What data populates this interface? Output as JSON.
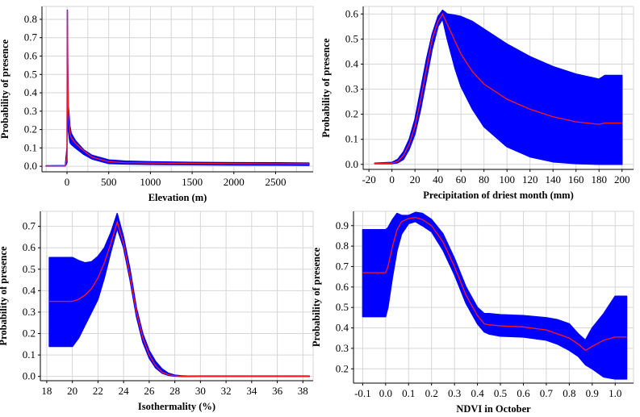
{
  "colors": {
    "band": "#0000ff",
    "mean": "#ff1a1a",
    "grid": "#d6d6d6",
    "axis": "#000000"
  },
  "chart_data": [
    {
      "type": "area",
      "xlabel": "Elevation (m)",
      "ylabel": "Probability of presence",
      "xlim": [
        -300,
        2950
      ],
      "ylim": [
        -0.03,
        0.87
      ],
      "xticks": [
        0,
        500,
        1000,
        1500,
        2000,
        2500
      ],
      "yticks": [
        0.0,
        0.1,
        0.2,
        0.3,
        0.4,
        0.5,
        0.6,
        0.7,
        0.8
      ],
      "xgrid": [
        -250,
        0,
        250,
        500,
        750,
        1000,
        1250,
        1500,
        1750,
        2000,
        2250,
        2500,
        2750
      ],
      "ygrid": [
        0.0,
        0.1,
        0.2,
        0.3,
        0.4,
        0.5,
        0.6,
        0.7,
        0.8
      ],
      "grid": true,
      "x": [
        -250,
        -20,
        0,
        5,
        10,
        15,
        25,
        35,
        50,
        100,
        200,
        300,
        500,
        700,
        1000,
        1500,
        2000,
        2500,
        2900
      ],
      "upper": [
        0.003,
        0.004,
        0.1,
        0.85,
        0.55,
        0.33,
        0.28,
        0.22,
        0.18,
        0.14,
        0.09,
        0.06,
        0.035,
        0.028,
        0.025,
        0.022,
        0.02,
        0.019,
        0.018
      ],
      "mean": [
        0.002,
        0.003,
        0.05,
        0.85,
        0.5,
        0.3,
        0.24,
        0.18,
        0.155,
        0.125,
        0.085,
        0.05,
        0.025,
        0.02,
        0.018,
        0.016,
        0.015,
        0.014,
        0.013
      ],
      "lower": [
        0.001,
        0.002,
        0.02,
        0.8,
        0.4,
        0.2,
        0.16,
        0.13,
        0.12,
        0.1,
        0.065,
        0.04,
        0.015,
        0.012,
        0.01,
        0.008,
        0.007,
        0.006,
        0.005
      ]
    },
    {
      "type": "area",
      "xlabel": "Precipitation of driest month (mm)",
      "ylabel": "Probability of presence",
      "xlim": [
        -25,
        210
      ],
      "ylim": [
        -0.02,
        0.63
      ],
      "xticks": [
        -20,
        0,
        20,
        40,
        60,
        80,
        100,
        120,
        140,
        160,
        180,
        200
      ],
      "yticks": [
        0.0,
        0.1,
        0.2,
        0.3,
        0.4,
        0.5,
        0.6
      ],
      "xgrid": [
        -20,
        0,
        20,
        40,
        60,
        80,
        100,
        120,
        140,
        160,
        180,
        200
      ],
      "ygrid": [
        0.0,
        0.1,
        0.2,
        0.3,
        0.4,
        0.5,
        0.6
      ],
      "grid": true,
      "x": [
        -15,
        0,
        5,
        10,
        15,
        20,
        25,
        30,
        35,
        40,
        44,
        48,
        55,
        60,
        70,
        80,
        100,
        120,
        140,
        160,
        180,
        185,
        200
      ],
      "upper": [
        0.005,
        0.008,
        0.02,
        0.05,
        0.1,
        0.18,
        0.3,
        0.42,
        0.52,
        0.59,
        0.615,
        0.6,
        0.595,
        0.59,
        0.57,
        0.54,
        0.48,
        0.43,
        0.39,
        0.36,
        0.34,
        0.355,
        0.355
      ],
      "mean": [
        0.004,
        0.005,
        0.012,
        0.035,
        0.08,
        0.15,
        0.26,
        0.38,
        0.5,
        0.57,
        0.6,
        0.56,
        0.49,
        0.44,
        0.37,
        0.32,
        0.26,
        0.22,
        0.19,
        0.17,
        0.16,
        0.165,
        0.165
      ],
      "lower": [
        0.003,
        0.003,
        0.006,
        0.02,
        0.06,
        0.12,
        0.22,
        0.34,
        0.46,
        0.55,
        0.58,
        0.5,
        0.38,
        0.31,
        0.22,
        0.15,
        0.07,
        0.03,
        0.01,
        0.003,
        0.0,
        0.0,
        0.0
      ]
    },
    {
      "type": "area",
      "xlabel": "Isothermality (%)",
      "ylabel": "Probability of presence",
      "xlim": [
        17.5,
        38.8
      ],
      "ylim": [
        -0.02,
        0.77
      ],
      "xticks": [
        18,
        20,
        22,
        24,
        26,
        28,
        30,
        32,
        34,
        36,
        38
      ],
      "yticks": [
        0.0,
        0.1,
        0.2,
        0.3,
        0.4,
        0.5,
        0.6,
        0.7
      ],
      "xgrid": [
        18,
        20,
        22,
        24,
        26,
        28,
        30,
        32,
        34,
        36,
        38
      ],
      "ygrid": [
        0.0,
        0.1,
        0.2,
        0.3,
        0.4,
        0.5,
        0.6,
        0.7
      ],
      "grid": true,
      "x": [
        18.2,
        20.0,
        20.5,
        21.0,
        21.5,
        22.0,
        22.5,
        23.0,
        23.5,
        24.0,
        24.5,
        25.0,
        25.5,
        26.0,
        26.5,
        27.0,
        27.5,
        28.0,
        28.5,
        29.0,
        30.0,
        32.0,
        35.0,
        38.5
      ],
      "upper": [
        0.555,
        0.555,
        0.54,
        0.53,
        0.535,
        0.56,
        0.6,
        0.67,
        0.76,
        0.65,
        0.5,
        0.32,
        0.2,
        0.12,
        0.07,
        0.035,
        0.015,
        0.006,
        0.003,
        0.002,
        0.002,
        0.002,
        0.002,
        0.002
      ],
      "mean": [
        0.35,
        0.35,
        0.36,
        0.38,
        0.41,
        0.46,
        0.53,
        0.62,
        0.72,
        0.62,
        0.47,
        0.3,
        0.18,
        0.1,
        0.05,
        0.02,
        0.008,
        0.003,
        0.001,
        0.001,
        0.0,
        0.0,
        0.0,
        0.0
      ],
      "lower": [
        0.14,
        0.14,
        0.18,
        0.24,
        0.3,
        0.36,
        0.46,
        0.58,
        0.69,
        0.6,
        0.45,
        0.28,
        0.16,
        0.085,
        0.04,
        0.015,
        0.005,
        0.001,
        0.0,
        0.0,
        0.0,
        0.0,
        0.0,
        0.0
      ]
    },
    {
      "type": "area",
      "xlabel": "NDVI in October",
      "ylabel": "Probability of presence",
      "xlim": [
        -0.14,
        1.08
      ],
      "ylim": [
        0.13,
        0.97
      ],
      "xticks": [
        -0.1,
        0.0,
        0.1,
        0.2,
        0.3,
        0.4,
        0.5,
        0.6,
        0.7,
        0.8,
        0.9,
        1.0
      ],
      "xtick_labels": [
        "-0.1",
        "0.0",
        "0.1",
        "0.2",
        "0.3",
        "0.4",
        "0.5",
        "0.6",
        "0.7",
        "0.8",
        "0.9",
        "1.0"
      ],
      "yticks": [
        0.2,
        0.3,
        0.4,
        0.5,
        0.6,
        0.7,
        0.8,
        0.9
      ],
      "xgrid": [
        -0.1,
        0.0,
        0.1,
        0.2,
        0.3,
        0.4,
        0.5,
        0.6,
        0.7,
        0.8,
        0.9,
        1.0
      ],
      "ygrid": [
        0.2,
        0.3,
        0.4,
        0.5,
        0.6,
        0.7,
        0.8,
        0.9
      ],
      "grid": true,
      "x": [
        -0.1,
        0.0,
        0.01,
        0.03,
        0.05,
        0.07,
        0.1,
        0.13,
        0.16,
        0.2,
        0.25,
        0.3,
        0.35,
        0.4,
        0.43,
        0.45,
        0.5,
        0.6,
        0.7,
        0.75,
        0.8,
        0.84,
        0.87,
        0.9,
        0.95,
        1.0,
        1.05
      ],
      "upper": [
        0.88,
        0.88,
        0.89,
        0.93,
        0.96,
        0.95,
        0.95,
        0.965,
        0.96,
        0.93,
        0.86,
        0.74,
        0.6,
        0.5,
        0.47,
        0.47,
        0.465,
        0.46,
        0.45,
        0.44,
        0.42,
        0.37,
        0.34,
        0.4,
        0.47,
        0.555,
        0.555
      ],
      "mean": [
        0.67,
        0.67,
        0.7,
        0.8,
        0.88,
        0.92,
        0.935,
        0.94,
        0.93,
        0.9,
        0.82,
        0.7,
        0.56,
        0.46,
        0.42,
        0.415,
        0.41,
        0.405,
        0.39,
        0.37,
        0.35,
        0.32,
        0.29,
        0.31,
        0.34,
        0.355,
        0.355
      ],
      "lower": [
        0.455,
        0.455,
        0.5,
        0.65,
        0.78,
        0.86,
        0.91,
        0.92,
        0.9,
        0.87,
        0.78,
        0.66,
        0.52,
        0.42,
        0.38,
        0.37,
        0.36,
        0.355,
        0.34,
        0.32,
        0.29,
        0.26,
        0.22,
        0.2,
        0.16,
        0.15,
        0.15
      ]
    }
  ]
}
